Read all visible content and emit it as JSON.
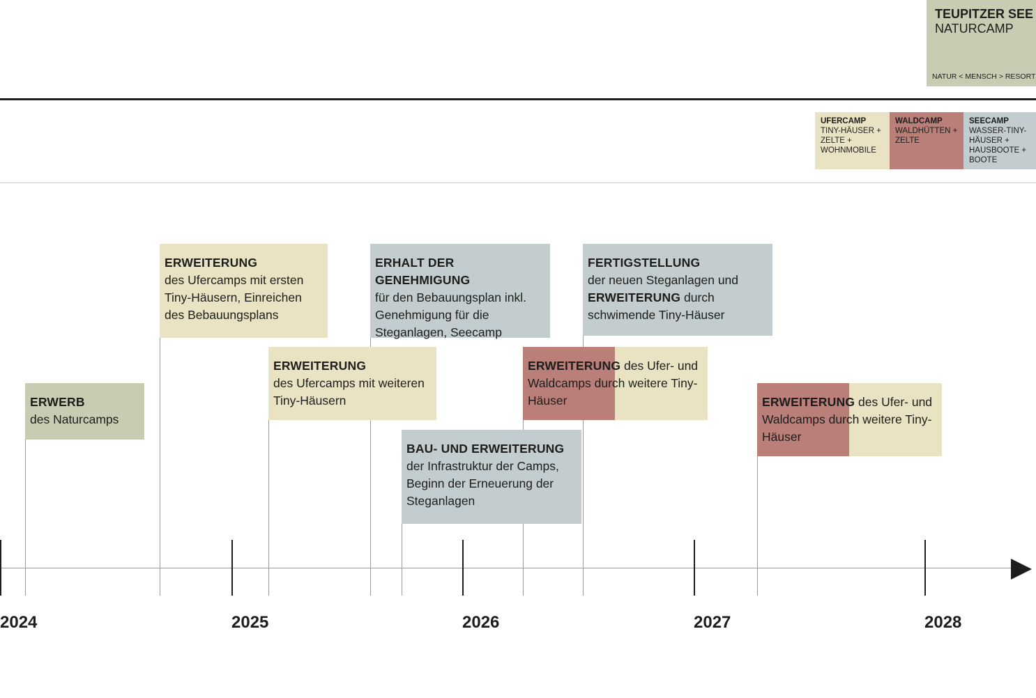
{
  "header": {
    "title": "TEUPITZER SEE",
    "subtitle": "NATURCAMP",
    "tagline": "NATUR < MENSCH > RESORT"
  },
  "legend": [
    {
      "title": "UFERCAMP",
      "text": "TINY-HÄUSER + ZELTE + WOHNMOBILE"
    },
    {
      "title": "WALDCAMP",
      "text": "WALDHÜTTEN + ZELTE"
    },
    {
      "title": "SEECAMP",
      "text": "WASSER-TINY-HÄUSER + HAUSBOOTE + BOOTE"
    }
  ],
  "events": [
    {
      "title": "ERWERB",
      "text": "des Naturcamps"
    },
    {
      "title": "ERWEITERUNG",
      "text": "des Ufercamps mit ersten Tiny-Häusern, Einreichen des Bebauungsplans"
    },
    {
      "title": "ERWEITERUNG",
      "text": "des Ufercamps mit weiteren Tiny-Häusern"
    },
    {
      "title": "ERHALT DER GENEHMIGUNG",
      "text": "für den Bebauungsplan inkl. Genehmigung für die Steganlagen, Seecamp"
    },
    {
      "title": "BAU- UND ERWEITERUNG",
      "text": "der Infrastruktur der Camps, Beginn der Erneuerung der Steganlagen"
    },
    {
      "title": "ERWEITERUNG",
      "text": " des Ufer- und Waldcamps durch weitere Tiny-Häuser"
    },
    {
      "title": "FERTIGSTELLUNG",
      "text": "der neuen Steganlagen und",
      "title2": "ERWEITERUNG",
      "text2": " durch schwimende Tiny-Häuser"
    },
    {
      "title": "ERWEITERUNG",
      "text": " des Ufer- und Waldcamps durch weitere Tiny-Häuser"
    }
  ],
  "years": [
    "2024",
    "2025",
    "2026",
    "2027",
    "2028"
  ]
}
